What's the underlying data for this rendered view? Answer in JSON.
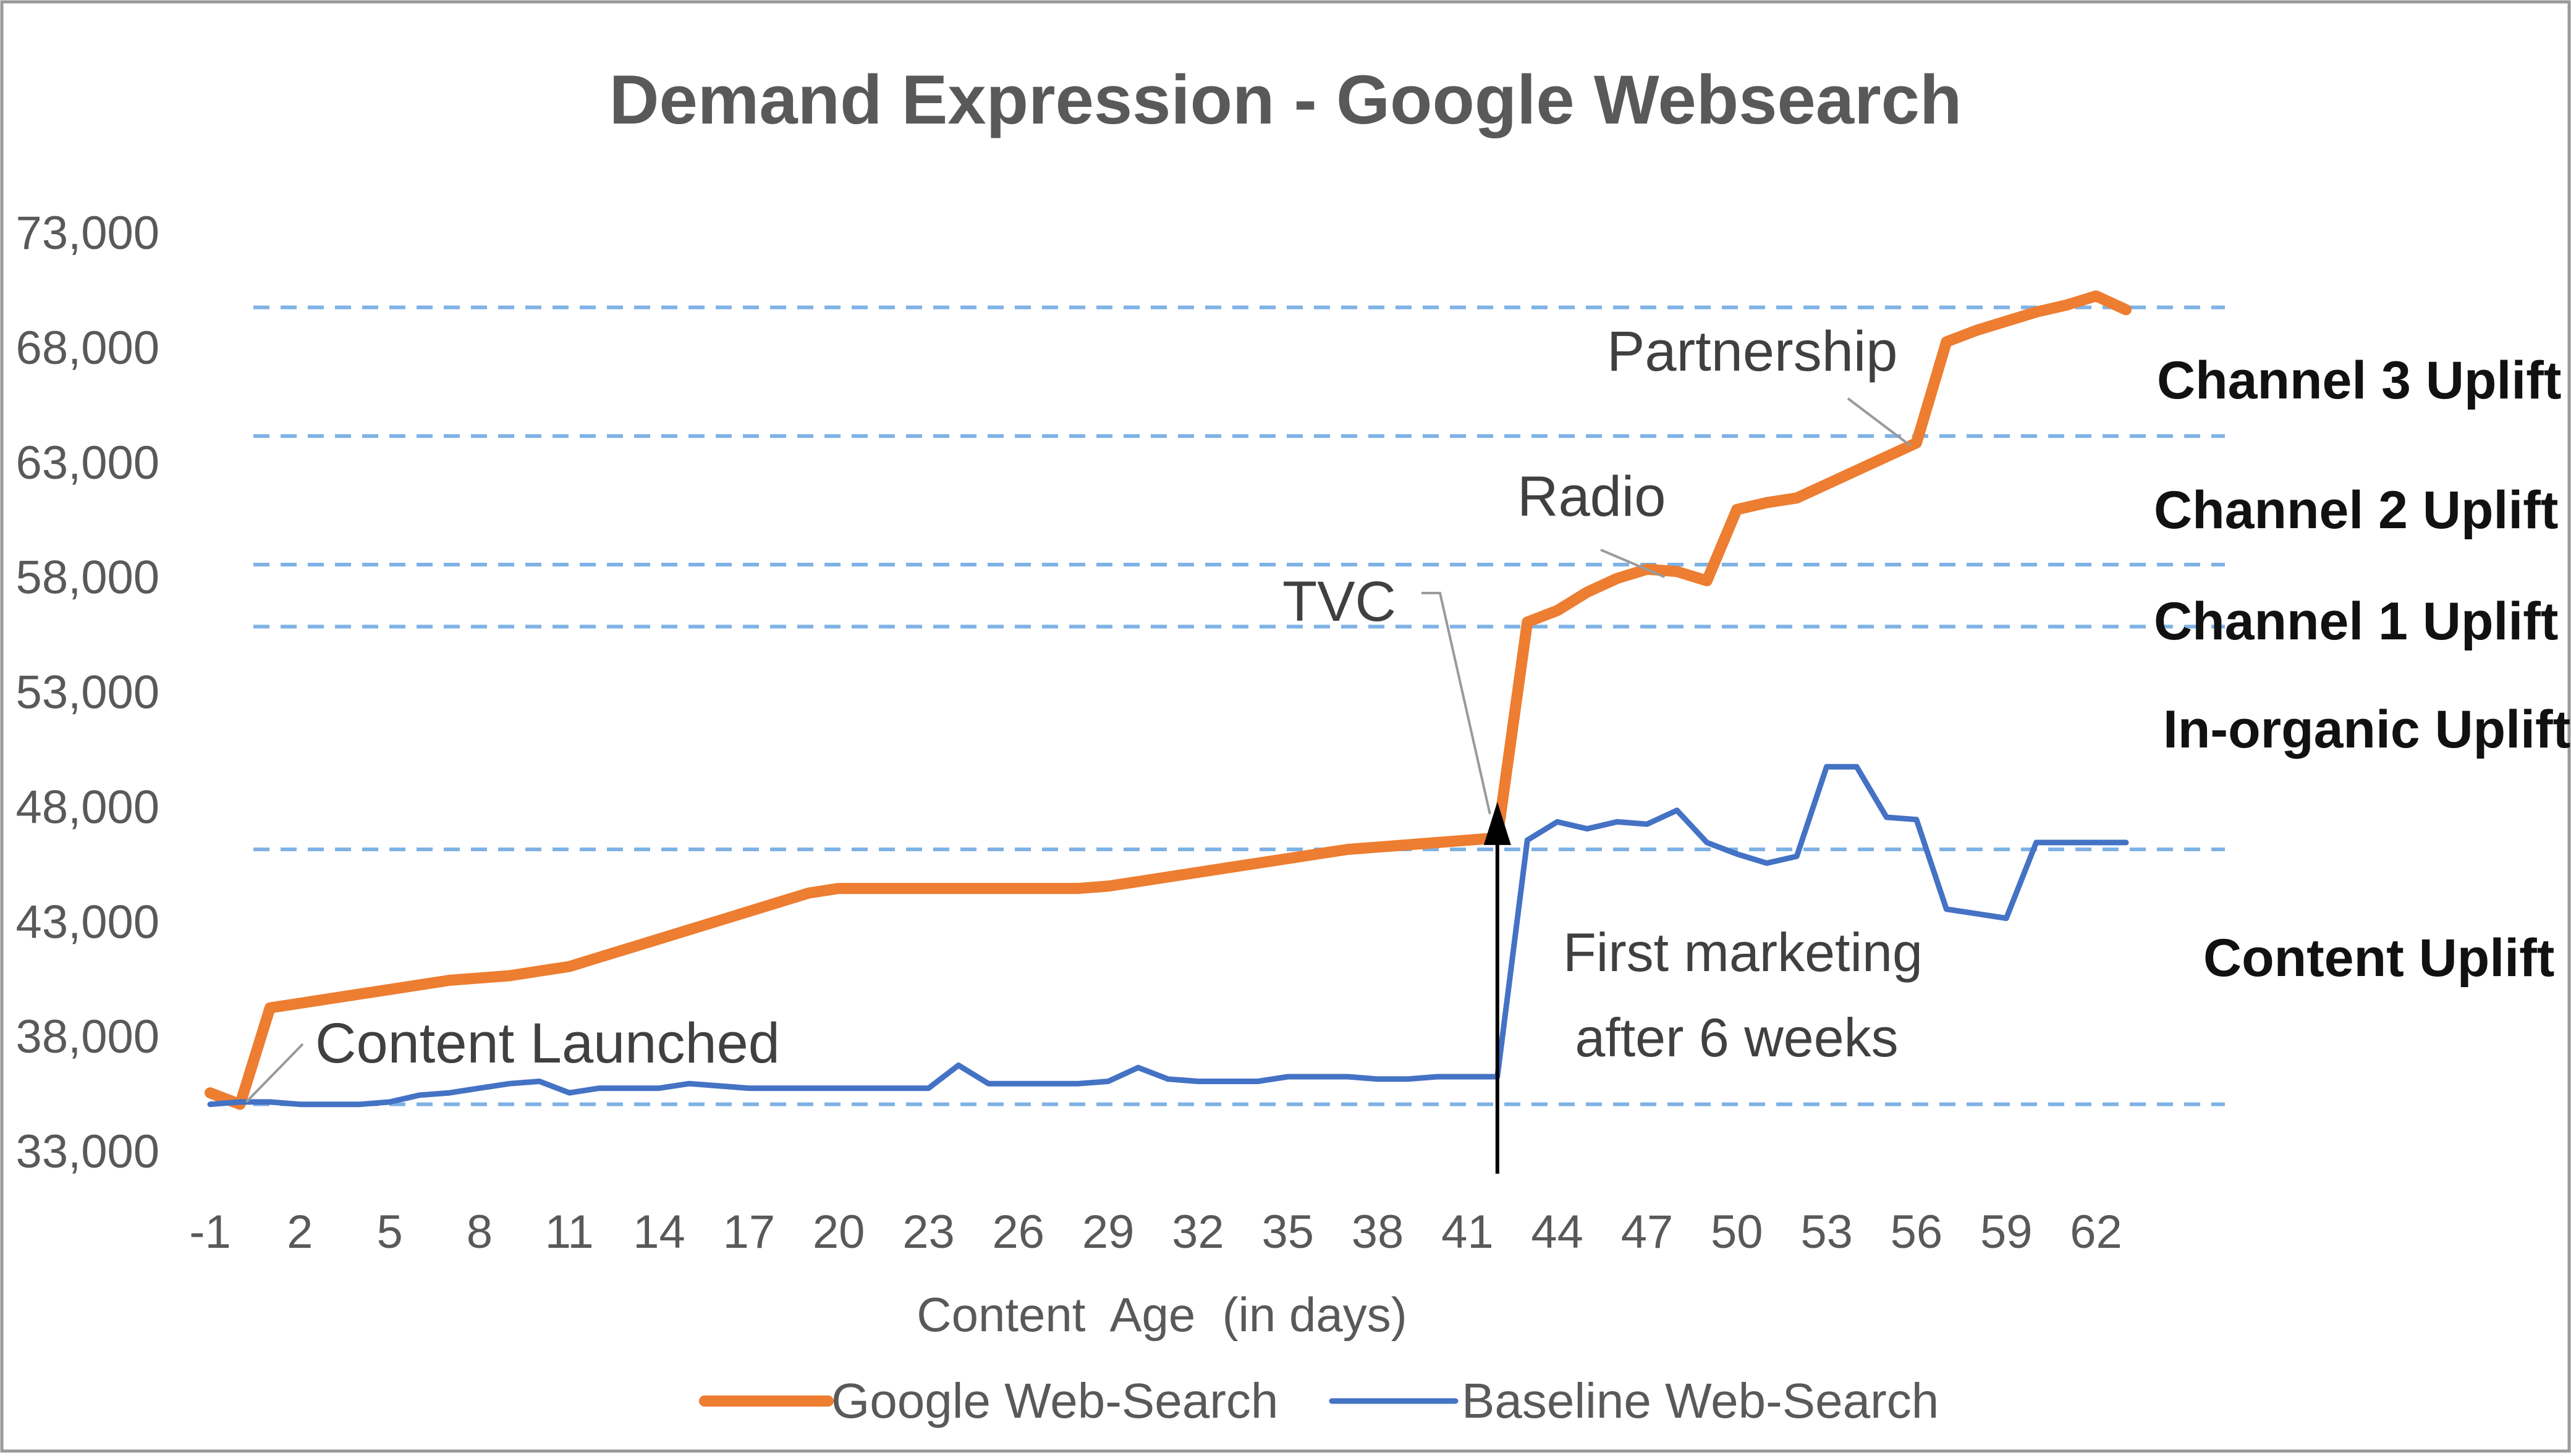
{
  "chart_data": {
    "type": "line",
    "title": "Demand Expression - Google Websearch",
    "xlabel": "Content  Age  (in days)",
    "ylabel": "",
    "x": [
      -1,
      0,
      1,
      2,
      3,
      4,
      5,
      6,
      7,
      8,
      9,
      10,
      11,
      12,
      13,
      14,
      15,
      16,
      17,
      18,
      19,
      20,
      21,
      22,
      23,
      24,
      25,
      26,
      27,
      28,
      29,
      30,
      31,
      32,
      33,
      34,
      35,
      36,
      37,
      38,
      39,
      40,
      41,
      42,
      43,
      44,
      45,
      46,
      47,
      48,
      49,
      50,
      51,
      52,
      53,
      54,
      55,
      56,
      57,
      58,
      59,
      60,
      61,
      62,
      63
    ],
    "xticks": [
      "-1",
      "2",
      "5",
      "8",
      "11",
      "14",
      "17",
      "20",
      "23",
      "26",
      "29",
      "32",
      "35",
      "38",
      "41",
      "44",
      "47",
      "50",
      "53",
      "56",
      "59",
      "62"
    ],
    "yticks": [
      "33,000",
      "38,000",
      "43,000",
      "48,000",
      "53,000",
      "58,000",
      "63,000",
      "68,000",
      "73,000"
    ],
    "ylim": [
      33000,
      73000
    ],
    "series": [
      {
        "name": "Google Web-Search",
        "color": "#ED7D31",
        "values": [
          35500,
          35000,
          39200,
          39400,
          39600,
          39800,
          40000,
          40200,
          40400,
          40500,
          40600,
          40800,
          41000,
          41400,
          41800,
          42200,
          42600,
          43000,
          43400,
          43800,
          44200,
          44400,
          44400,
          44400,
          44400,
          44400,
          44400,
          44400,
          44400,
          44400,
          44500,
          44700,
          44900,
          45100,
          45300,
          45500,
          45700,
          45900,
          46100,
          46200,
          46300,
          46400,
          46500,
          46600,
          56000,
          56500,
          57300,
          57900,
          58300,
          58200,
          57800,
          60900,
          61200,
          61400,
          62000,
          62600,
          63200,
          63800,
          68200,
          68700,
          69100,
          69500,
          69800,
          70200,
          69600
        ]
      },
      {
        "name": "Baseline Web-Search",
        "color": "#4472C4",
        "values": [
          35000,
          35100,
          35100,
          35000,
          35000,
          35000,
          35100,
          35400,
          35500,
          35700,
          35900,
          36000,
          35500,
          35700,
          35700,
          35700,
          35900,
          35800,
          35700,
          35700,
          35700,
          35700,
          35700,
          35700,
          35700,
          36700,
          35900,
          35900,
          35900,
          35900,
          36000,
          36600,
          36100,
          36000,
          36000,
          36000,
          36200,
          36200,
          36200,
          36100,
          36100,
          36200,
          36200,
          36200,
          46500,
          47300,
          47000,
          47300,
          47200,
          47800,
          46400,
          45900,
          45500,
          45800,
          49700,
          49700,
          47500,
          47400,
          43500,
          43300,
          43100,
          46400,
          46400,
          46400,
          46400
        ]
      }
    ],
    "reference_lines": [
      {
        "y": 35000,
        "label": "Content Uplift"
      },
      {
        "y": 46100,
        "label": "In-organic Uplift"
      },
      {
        "y": 55800,
        "label": "Channel 1 Uplift"
      },
      {
        "y": 58500,
        "label": "Channel 2 Uplift"
      },
      {
        "y": 64100,
        "label": "Channel 3 Uplift"
      },
      {
        "y": 69700,
        "label": ""
      }
    ],
    "annotations": [
      {
        "text": "Content Launched",
        "x": 0,
        "y": 35100
      },
      {
        "text": "TVC",
        "x": 42,
        "y": 47100
      },
      {
        "text": "Radio",
        "x": 48,
        "y": 58500
      },
      {
        "text": "Partnership",
        "x": 56,
        "y": 63900
      },
      {
        "text": "First marketing",
        "x": 42,
        "y": 47700
      },
      {
        "text": "after 6 weeks",
        "x": 42,
        "y": 47700
      }
    ],
    "legend": "bottom",
    "grid": false
  }
}
